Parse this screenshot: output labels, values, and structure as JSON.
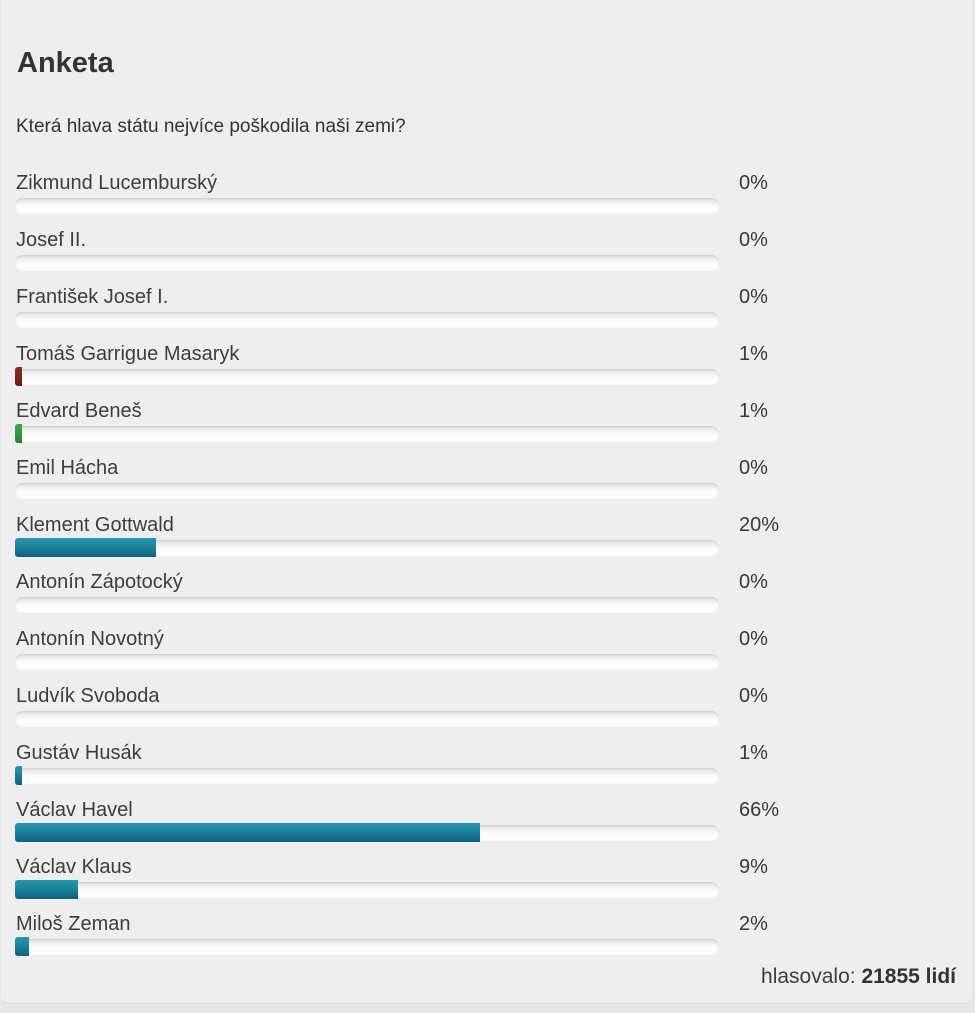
{
  "poll": {
    "title": "Anketa",
    "question": "Která hlava státu nejvíce poškodila naši zemi?",
    "options": [
      {
        "label": "Zikmund Lucemburský",
        "percent": "0%",
        "value": 0,
        "color": "teal"
      },
      {
        "label": "Josef II.",
        "percent": "0%",
        "value": 0,
        "color": "teal"
      },
      {
        "label": "František Josef I.",
        "percent": "0%",
        "value": 0,
        "color": "teal"
      },
      {
        "label": "Tomáš Garrigue Masaryk",
        "percent": "1%",
        "value": 1,
        "color": "red"
      },
      {
        "label": "Edvard Beneš",
        "percent": "1%",
        "value": 1,
        "color": "green"
      },
      {
        "label": "Emil Hácha",
        "percent": "0%",
        "value": 0,
        "color": "teal"
      },
      {
        "label": "Klement Gottwald",
        "percent": "20%",
        "value": 20,
        "color": "teal"
      },
      {
        "label": "Antonín Zápotocký",
        "percent": "0%",
        "value": 0,
        "color": "teal"
      },
      {
        "label": "Antonín Novotný",
        "percent": "0%",
        "value": 0,
        "color": "teal"
      },
      {
        "label": "Ludvík Svoboda",
        "percent": "0%",
        "value": 0,
        "color": "teal"
      },
      {
        "label": "Gustáv Husák",
        "percent": "1%",
        "value": 1,
        "color": "teal"
      },
      {
        "label": "Václav Havel",
        "percent": "66%",
        "value": 66,
        "color": "teal"
      },
      {
        "label": "Václav Klaus",
        "percent": "9%",
        "value": 9,
        "color": "teal"
      },
      {
        "label": "Miloš Zeman",
        "percent": "2%",
        "value": 2,
        "color": "teal"
      }
    ],
    "colors": {
      "teal": {
        "top": "#2a96ae",
        "mid": "#187e98",
        "bottom": "#11607a"
      },
      "red": {
        "top": "#8a2d27",
        "mid": "#7b2420",
        "bottom": "#691c19"
      },
      "green": {
        "top": "#46a44b",
        "mid": "#3a9440",
        "bottom": "#2f7c35"
      }
    },
    "footer": {
      "label": "hlasovalo:",
      "votes": "21855 lidí"
    }
  },
  "chart_data": {
    "type": "bar",
    "title": "Anketa",
    "subtitle": "Která hlava státu nejvíce poškodila naši zemi?",
    "categories": [
      "Zikmund Lucemburský",
      "Josef II.",
      "František Josef I.",
      "Tomáš Garrigue Masaryk",
      "Edvard Beneš",
      "Emil Hácha",
      "Klement Gottwald",
      "Antonín Zápotocký",
      "Antonín Novotný",
      "Ludvík Svoboda",
      "Gustáv Husák",
      "Václav Havel",
      "Václav Klaus",
      "Miloš Zeman"
    ],
    "values": [
      0,
      0,
      0,
      1,
      1,
      0,
      20,
      0,
      0,
      0,
      1,
      66,
      9,
      2
    ],
    "unit": "%",
    "xlim": [
      0,
      100
    ],
    "orientation": "horizontal",
    "annotation": "hlasovalo: 21855 lidí"
  }
}
